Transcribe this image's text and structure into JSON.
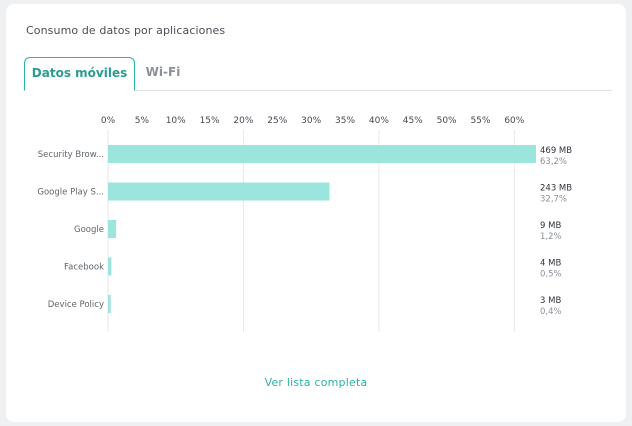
{
  "card": {
    "title": "Consumo de datos por aplicaciones",
    "view_all_label": "Ver lista completa"
  },
  "tabs": [
    {
      "label": "Datos móviles",
      "active": true
    },
    {
      "label": "Wi-Fi",
      "active": false
    }
  ],
  "colors": {
    "accent": "#2bb3a4",
    "bar": "#9be5dd",
    "grid": "#e6e8ea"
  },
  "chart_data": {
    "type": "bar",
    "orientation": "horizontal",
    "title": "",
    "xlabel": "",
    "ylabel": "",
    "xlim": [
      0,
      63.2
    ],
    "grid": true,
    "legend": "none",
    "ticks": [
      "0%",
      "5%",
      "10%",
      "15%",
      "20%",
      "25%",
      "30%",
      "35%",
      "40%",
      "45%",
      "50%",
      "55%",
      "60%"
    ],
    "tick_values": [
      0,
      5,
      10,
      15,
      20,
      25,
      30,
      35,
      40,
      45,
      50,
      55,
      60
    ],
    "categories": [
      "Security Brow...",
      "Google Play S...",
      "Google",
      "Facebook",
      "Device Policy"
    ],
    "values": [
      63.2,
      32.7,
      1.2,
      0.5,
      0.4
    ],
    "value_labels": [
      "469 MB",
      "243 MB",
      "9 MB",
      "4 MB",
      "3 MB"
    ],
    "percent_labels": [
      "63,2%",
      "32,7%",
      "1,2%",
      "0,5%",
      "0,4%"
    ]
  }
}
